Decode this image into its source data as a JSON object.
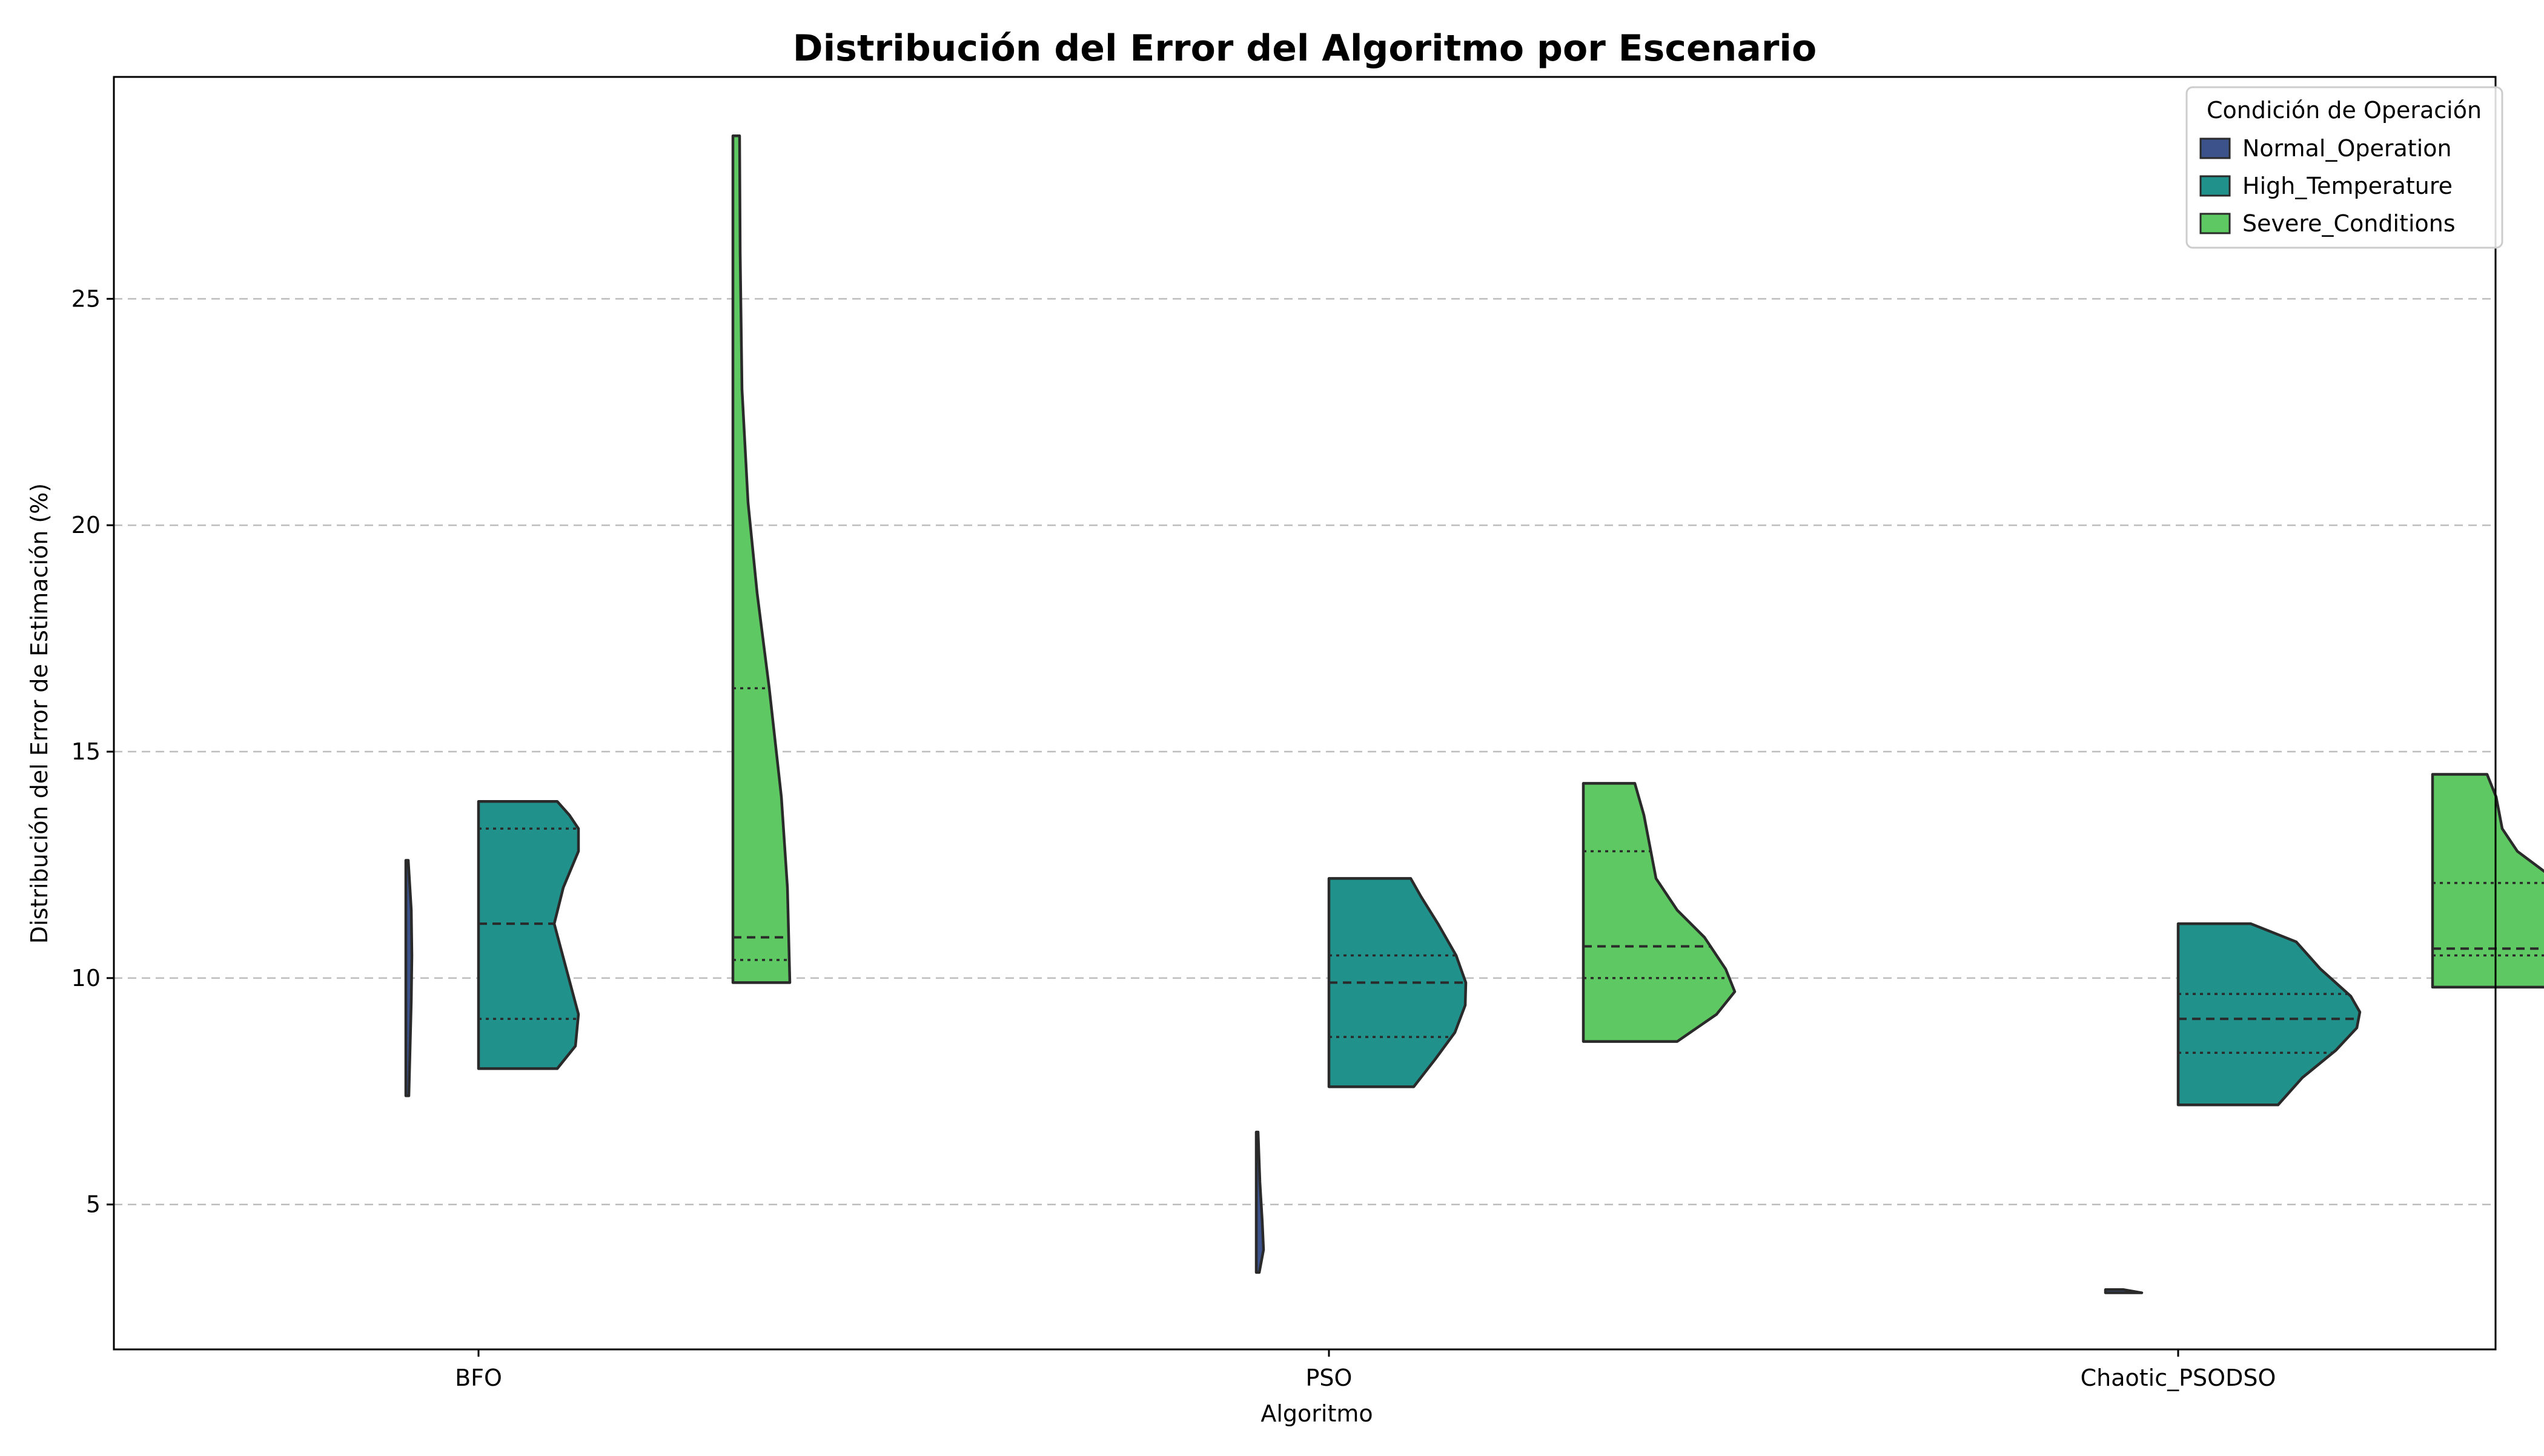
{
  "chart_data": {
    "type": "violin",
    "title": "Distribución del Error del Algoritmo por Escenario",
    "xlabel": "Algoritmo",
    "ylabel": "Distribución del Error de Estimación (%)",
    "categories": [
      "BFO",
      "PSO",
      "Chaotic_PSODSO"
    ],
    "ylim": [
      1.8,
      29.9
    ],
    "yticks": [
      5,
      10,
      15,
      20,
      25
    ],
    "grid": "y-dashed",
    "legend": {
      "title": "Condición de Operación",
      "position": "top-right"
    },
    "series": [
      {
        "name": "Normal_Operation",
        "color": "#3b528b",
        "violins": [
          {
            "category": "BFO",
            "min": 7.4,
            "max": 12.6,
            "q1": null,
            "median": null,
            "q3": null,
            "profile": [
              [
                7.4,
                0.05
              ],
              [
                9.5,
                0.09
              ],
              [
                10.5,
                0.1
              ],
              [
                11.5,
                0.09
              ],
              [
                12.6,
                0.04
              ]
            ]
          },
          {
            "category": "PSO",
            "min": 3.5,
            "max": 6.6,
            "q1": null,
            "median": null,
            "q3": null,
            "profile": [
              [
                3.5,
                0.05
              ],
              [
                4.0,
                0.12
              ],
              [
                4.6,
                0.1
              ],
              [
                5.5,
                0.06
              ],
              [
                6.6,
                0.03
              ]
            ]
          },
          {
            "category": "Chaotic_PSODSO",
            "min": 3.05,
            "max": 3.12,
            "q1": null,
            "median": null,
            "q3": null,
            "profile": [
              [
                3.05,
                0.6
              ],
              [
                3.12,
                0.3
              ]
            ]
          }
        ]
      },
      {
        "name": "High_Temperature",
        "color": "#21918c",
        "violins": [
          {
            "category": "BFO",
            "min": 8.0,
            "max": 13.9,
            "q1": 9.1,
            "median": 11.2,
            "q3": 13.3,
            "profile": [
              [
                8.0,
                1.3
              ],
              [
                8.5,
                1.6
              ],
              [
                9.2,
                1.65
              ],
              [
                10.2,
                1.45
              ],
              [
                11.2,
                1.25
              ],
              [
                12.0,
                1.4
              ],
              [
                12.8,
                1.65
              ],
              [
                13.3,
                1.65
              ],
              [
                13.6,
                1.5
              ],
              [
                13.9,
                1.3
              ]
            ]
          },
          {
            "category": "PSO",
            "min": 7.6,
            "max": 12.2,
            "q1": 8.7,
            "median": 9.9,
            "q3": 10.5,
            "profile": [
              [
                7.6,
                1.4
              ],
              [
                8.2,
                1.75
              ],
              [
                8.8,
                2.08
              ],
              [
                9.4,
                2.25
              ],
              [
                9.9,
                2.26
              ],
              [
                10.5,
                2.1
              ],
              [
                11.2,
                1.8
              ],
              [
                11.8,
                1.52
              ],
              [
                12.2,
                1.35
              ]
            ]
          },
          {
            "category": "Chaotic_PSODSO",
            "min": 7.2,
            "max": 11.2,
            "q1": 8.35,
            "median": 9.1,
            "q3": 9.65,
            "profile": [
              [
                7.2,
                1.65
              ],
              [
                7.8,
                2.05
              ],
              [
                8.4,
                2.6
              ],
              [
                8.9,
                2.95
              ],
              [
                9.25,
                3.0
              ],
              [
                9.6,
                2.85
              ],
              [
                10.2,
                2.35
              ],
              [
                10.8,
                1.95
              ],
              [
                11.2,
                1.2
              ]
            ]
          }
        ]
      },
      {
        "name": "Severe_Conditions",
        "color": "#5ec962",
        "violins": [
          {
            "category": "BFO",
            "min": 9.9,
            "max": 28.6,
            "q1": 10.4,
            "median": 10.9,
            "q3": 16.4,
            "profile": [
              [
                9.9,
                0.94
              ],
              [
                12.0,
                0.9
              ],
              [
                14.0,
                0.8
              ],
              [
                16.4,
                0.6
              ],
              [
                18.5,
                0.4
              ],
              [
                20.5,
                0.25
              ],
              [
                23.0,
                0.15
              ],
              [
                26.0,
                0.12
              ],
              [
                28.6,
                0.11
              ]
            ]
          },
          {
            "category": "PSO",
            "min": 8.6,
            "max": 14.3,
            "q1": 10.0,
            "median": 10.7,
            "q3": 12.8,
            "profile": [
              [
                8.6,
                1.55
              ],
              [
                9.2,
                2.2
              ],
              [
                9.7,
                2.5
              ],
              [
                10.2,
                2.35
              ],
              [
                10.9,
                2.0
              ],
              [
                11.5,
                1.55
              ],
              [
                12.2,
                1.2
              ],
              [
                12.9,
                1.1
              ],
              [
                13.6,
                1.0
              ],
              [
                14.3,
                0.85
              ]
            ]
          },
          {
            "category": "Chaotic_PSODSO",
            "min": 9.8,
            "max": 14.5,
            "q1": 10.5,
            "median": 10.65,
            "q3": 12.1,
            "profile": [
              [
                9.8,
                3.3
              ],
              [
                10.1,
                3.55
              ],
              [
                10.6,
                3.45
              ],
              [
                11.3,
                2.95
              ],
              [
                12.0,
                2.2
              ],
              [
                12.8,
                1.4
              ],
              [
                13.3,
                1.15
              ],
              [
                14.0,
                1.05
              ],
              [
                14.5,
                0.9
              ]
            ]
          }
        ]
      }
    ]
  }
}
